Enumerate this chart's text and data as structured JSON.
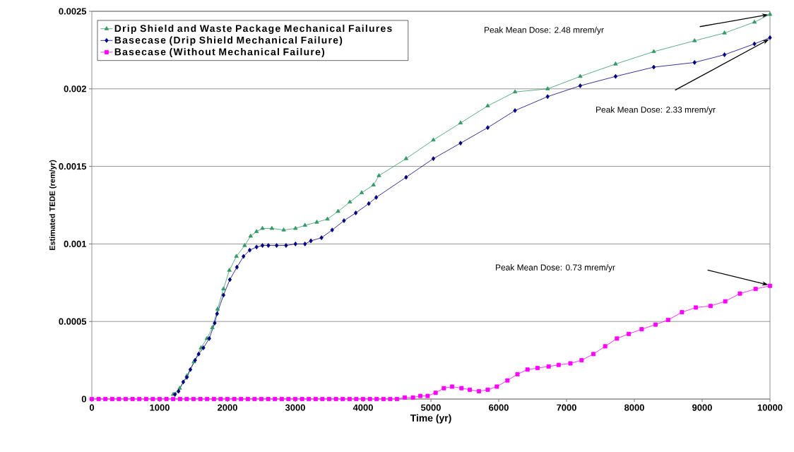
{
  "chart_data": {
    "type": "line",
    "xlabel": "Time (yr)",
    "ylabel": "Estimated TEDE (rem/yr)",
    "xlim": [
      0,
      10000
    ],
    "xticks": [
      0,
      1000,
      2000,
      3000,
      4000,
      5000,
      6000,
      7000,
      8000,
      9000,
      10000
    ],
    "ylim": [
      0,
      0.0025
    ],
    "yticks": [
      0,
      0.0005,
      0.001,
      0.0015,
      0.002,
      0.0025
    ],
    "grid": "y",
    "legend": "top left",
    "line_style": "solid",
    "series": [
      {
        "name": "Drip Shield and Waste Package Mechanical Failures",
        "color": "#339966",
        "marker": "triangle",
        "x": [
          1200,
          1296,
          1401,
          1505,
          1610,
          1697,
          1777,
          1854,
          1941,
          2028,
          2132,
          2254,
          2341,
          2429,
          2516,
          2655,
          2829,
          3003,
          3143,
          3317,
          3474,
          3631,
          3805,
          3979,
          4153,
          4234,
          4634,
          5036,
          5437,
          5838,
          6240,
          6721,
          7202,
          7723,
          8286,
          8888,
          9329,
          9771,
          10000
        ],
        "values": [
          3e-05,
          7e-05,
          0.00015,
          0.00024,
          0.00033,
          0.00039,
          0.00046,
          0.00058,
          0.00071,
          0.00083,
          0.00092,
          0.00099,
          0.00105,
          0.00108,
          0.0011,
          0.0011,
          0.00109,
          0.0011,
          0.00112,
          0.00114,
          0.00116,
          0.00121,
          0.00127,
          0.00133,
          0.00138,
          0.00144,
          0.00155,
          0.00167,
          0.00178,
          0.00189,
          0.00198,
          0.002,
          0.00208,
          0.00216,
          0.00224,
          0.00231,
          0.00236,
          0.00243,
          0.00248
        ]
      },
      {
        "name": "Basecase (Drip Shield Mechanical Failure)",
        "color": "#000080",
        "marker": "diamond",
        "x": [
          1226,
          1279,
          1348,
          1401,
          1453,
          1523,
          1575,
          1645,
          1732,
          1812,
          1847,
          1941,
          2035,
          2139,
          2237,
          2328,
          2429,
          2516,
          2603,
          2725,
          2864,
          3003,
          3143,
          3230,
          3387,
          3544,
          3718,
          3892,
          4084,
          4193,
          4634,
          5036,
          5437,
          5838,
          6240,
          6721,
          7202,
          7723,
          8286,
          8888,
          9329,
          9771,
          10000
        ],
        "values": [
          3e-05,
          5e-05,
          0.00011,
          0.00014,
          0.00019,
          0.00025,
          0.00029,
          0.00033,
          0.00039,
          0.00049,
          0.00055,
          0.00067,
          0.00077,
          0.00085,
          0.00092,
          0.00096,
          0.00098,
          0.00099,
          0.00099,
          0.00099,
          0.00099,
          0.001,
          0.001,
          0.00102,
          0.00104,
          0.00109,
          0.00115,
          0.0012,
          0.00126,
          0.0013,
          0.00143,
          0.00155,
          0.00165,
          0.00175,
          0.00186,
          0.00195,
          0.00202,
          0.00208,
          0.00214,
          0.00217,
          0.00222,
          0.00229,
          0.00233
        ]
      },
      {
        "name": "Basecase (Without Mechanical Failure)",
        "color": "#ff00ff",
        "marker": "square",
        "x": [
          0,
          100,
          200,
          300,
          400,
          500,
          600,
          700,
          800,
          900,
          1000,
          1100,
          1200,
          1300,
          1400,
          1500,
          1600,
          1700,
          1800,
          1900,
          2000,
          2100,
          2200,
          2300,
          2400,
          2500,
          2600,
          2700,
          2800,
          2900,
          3000,
          3100,
          3200,
          3300,
          3400,
          3500,
          3600,
          3700,
          3800,
          3900,
          4000,
          4100,
          4200,
          4300,
          4400,
          4500,
          4614,
          4735,
          4844,
          4952,
          5069,
          5191,
          5312,
          5451,
          5573,
          5707,
          5838,
          5972,
          6128,
          6276,
          6424,
          6571,
          6736,
          6883,
          7057,
          7222,
          7396,
          7569,
          7743,
          7917,
          8108,
          8312,
          8498,
          8702,
          8906,
          9123,
          9340,
          9557,
          9788,
          10000
        ],
        "values": [
          0,
          0,
          0,
          0,
          0,
          0,
          0,
          0,
          0,
          0,
          0,
          0,
          0,
          0,
          0,
          0,
          0,
          0,
          0,
          0,
          0,
          0,
          0,
          0,
          0,
          0,
          0,
          0,
          0,
          0,
          0,
          0,
          0,
          0,
          0,
          0,
          0,
          0,
          0,
          0,
          0,
          0,
          0,
          0,
          0,
          0,
          1e-05,
          1e-05,
          2e-05,
          2e-05,
          4e-05,
          7e-05,
          8e-05,
          7e-05,
          6e-05,
          5e-05,
          6e-05,
          8e-05,
          0.00012,
          0.00016,
          0.00019,
          0.0002,
          0.00021,
          0.00022,
          0.00023,
          0.00025,
          0.00029,
          0.00034,
          0.00039,
          0.00042,
          0.00045,
          0.00048,
          0.00051,
          0.00056,
          0.00059,
          0.0006,
          0.00063,
          0.00068,
          0.00071,
          0.00073
        ]
      }
    ],
    "annotations": [
      "Peak Mean Dose: 2.48 mrem/yr",
      "Peak Mean Dose: 2.33 mrem/yr",
      "Peak Mean Dose: 0.73 mrem/yr"
    ]
  }
}
